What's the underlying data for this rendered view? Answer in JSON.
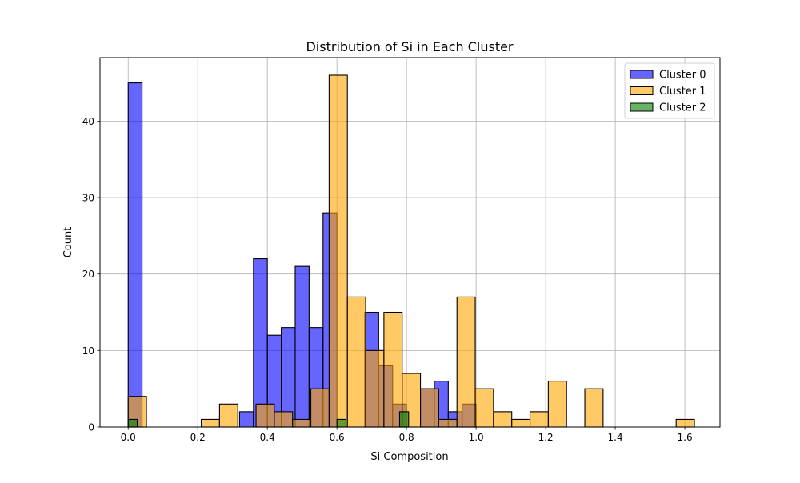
{
  "chart_data": {
    "type": "bar",
    "subtype": "overlapping-histogram",
    "title": "Distribution of Si in Each Cluster",
    "xlabel": "Si Composition",
    "ylabel": "Count",
    "xlim": [
      -0.081,
      1.701
    ],
    "ylim": [
      0,
      48.3
    ],
    "xticks": [
      0.0,
      0.2,
      0.4,
      0.6,
      0.8,
      1.0,
      1.2,
      1.4,
      1.6
    ],
    "xtick_labels": [
      "0.0",
      "0.2",
      "0.4",
      "0.6",
      "0.8",
      "1.0",
      "1.2",
      "1.4",
      "1.6"
    ],
    "yticks": [
      0,
      10,
      20,
      30,
      40
    ],
    "ytick_labels": [
      "0",
      "10",
      "20",
      "30",
      "40"
    ],
    "grid": true,
    "legend_position": "top-right",
    "series": [
      {
        "name": "Cluster 0",
        "color": "#0000ff",
        "alpha": 0.6,
        "bins": [
          {
            "x0": 0.0,
            "x1": 0.04,
            "count": 45
          },
          {
            "x0": 0.04,
            "x1": 0.08,
            "count": 0
          },
          {
            "x0": 0.08,
            "x1": 0.12,
            "count": 0
          },
          {
            "x0": 0.12,
            "x1": 0.16,
            "count": 0
          },
          {
            "x0": 0.16,
            "x1": 0.2,
            "count": 0
          },
          {
            "x0": 0.2,
            "x1": 0.24,
            "count": 0
          },
          {
            "x0": 0.24,
            "x1": 0.28,
            "count": 0
          },
          {
            "x0": 0.28,
            "x1": 0.32,
            "count": 0
          },
          {
            "x0": 0.32,
            "x1": 0.36,
            "count": 2
          },
          {
            "x0": 0.36,
            "x1": 0.4,
            "count": 22
          },
          {
            "x0": 0.4,
            "x1": 0.44,
            "count": 12
          },
          {
            "x0": 0.44,
            "x1": 0.48,
            "count": 13
          },
          {
            "x0": 0.48,
            "x1": 0.52,
            "count": 21
          },
          {
            "x0": 0.52,
            "x1": 0.56,
            "count": 13
          },
          {
            "x0": 0.56,
            "x1": 0.6,
            "count": 28
          },
          {
            "x0": 0.6,
            "x1": 0.64,
            "count": 0
          },
          {
            "x0": 0.64,
            "x1": 0.68,
            "count": 0
          },
          {
            "x0": 0.68,
            "x1": 0.72,
            "count": 15
          },
          {
            "x0": 0.72,
            "x1": 0.76,
            "count": 8
          },
          {
            "x0": 0.76,
            "x1": 0.8,
            "count": 3
          },
          {
            "x0": 0.8,
            "x1": 0.84,
            "count": 0
          },
          {
            "x0": 0.84,
            "x1": 0.88,
            "count": 5
          },
          {
            "x0": 0.88,
            "x1": 0.92,
            "count": 6
          },
          {
            "x0": 0.92,
            "x1": 0.96,
            "count": 2
          },
          {
            "x0": 0.96,
            "x1": 1.0,
            "count": 3
          }
        ]
      },
      {
        "name": "Cluster 1",
        "color": "#ffa500",
        "alpha": 0.6,
        "bins": [
          {
            "x0": 0.0,
            "x1": 0.0525,
            "count": 4
          },
          {
            "x0": 0.21,
            "x1": 0.2625,
            "count": 1
          },
          {
            "x0": 0.2625,
            "x1": 0.315,
            "count": 3
          },
          {
            "x0": 0.3675,
            "x1": 0.42,
            "count": 3
          },
          {
            "x0": 0.42,
            "x1": 0.4725,
            "count": 2
          },
          {
            "x0": 0.4725,
            "x1": 0.525,
            "count": 1
          },
          {
            "x0": 0.525,
            "x1": 0.5775,
            "count": 5
          },
          {
            "x0": 0.5775,
            "x1": 0.63,
            "count": 46
          },
          {
            "x0": 0.63,
            "x1": 0.6825,
            "count": 17
          },
          {
            "x0": 0.6825,
            "x1": 0.735,
            "count": 10
          },
          {
            "x0": 0.735,
            "x1": 0.7875,
            "count": 15
          },
          {
            "x0": 0.7875,
            "x1": 0.84,
            "count": 7
          },
          {
            "x0": 0.84,
            "x1": 0.8925,
            "count": 5
          },
          {
            "x0": 0.8925,
            "x1": 0.945,
            "count": 1
          },
          {
            "x0": 0.945,
            "x1": 0.9975,
            "count": 17
          },
          {
            "x0": 0.9975,
            "x1": 1.05,
            "count": 5
          },
          {
            "x0": 1.05,
            "x1": 1.1025,
            "count": 2
          },
          {
            "x0": 1.1025,
            "x1": 1.155,
            "count": 1
          },
          {
            "x0": 1.155,
            "x1": 1.2075,
            "count": 2
          },
          {
            "x0": 1.2075,
            "x1": 1.26,
            "count": 6
          },
          {
            "x0": 1.3125,
            "x1": 1.365,
            "count": 5
          },
          {
            "x0": 1.575,
            "x1": 1.6275,
            "count": 1
          }
        ]
      },
      {
        "name": "Cluster 2",
        "color": "#008000",
        "alpha": 0.6,
        "bins": [
          {
            "x0": 0.0,
            "x1": 0.026,
            "count": 1
          },
          {
            "x0": 0.6,
            "x1": 0.626,
            "count": 1
          },
          {
            "x0": 0.78,
            "x1": 0.806,
            "count": 2
          }
        ]
      }
    ]
  }
}
